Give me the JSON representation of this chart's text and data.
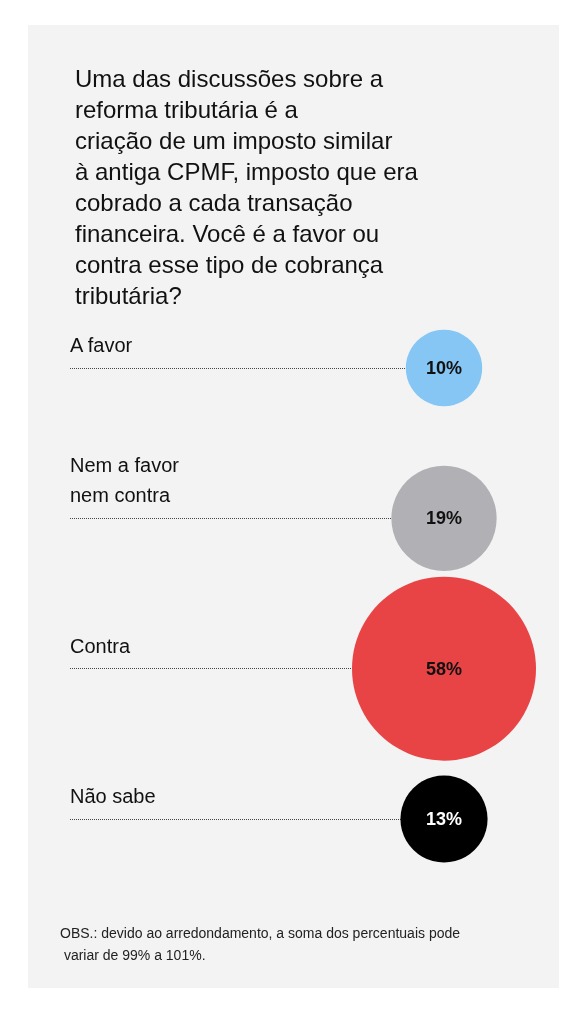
{
  "chart_data": {
    "type": "other",
    "title": "Uma das discussões sobre a reforma tributária é a criação de um imposto similar à antiga CPMF, imposto que era cobrado a cada transação financeira. Você é a favor ou contra esse tipo de cobrança tributária?",
    "categories": [
      "A favor",
      "Nem a favor nem contra",
      "Contra",
      "Não sabe"
    ],
    "values": [
      10,
      19,
      58,
      13
    ],
    "value_labels": [
      "10%",
      "19%",
      "58%",
      "13%"
    ],
    "colors": [
      "#85c6f5",
      "#b1b0b5",
      "#e84446",
      "#000000"
    ],
    "annotations": [
      "OBS.: devido ao arredondamento, a soma dos percentuais pode variar de 99% a 101%."
    ]
  }
}
